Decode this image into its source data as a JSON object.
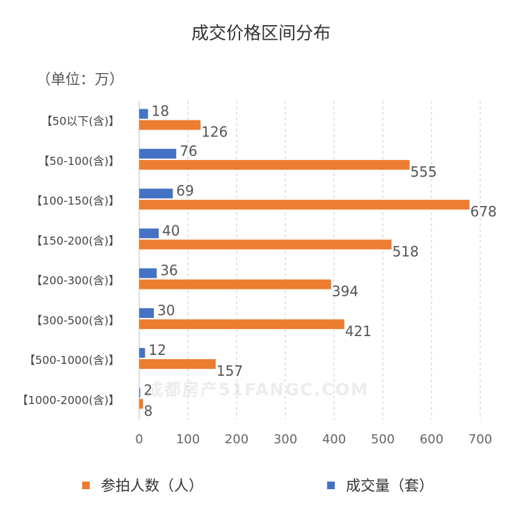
{
  "chart_data": {
    "type": "bar",
    "orientation": "horizontal",
    "title": "成交价格区间分布",
    "unit_label": "（单位：万）",
    "categories": [
      "【50以下(含)】",
      "【50-100(含)】",
      "【100-150(含)】",
      "【150-200(含)】",
      "【200-300(含)】",
      "【300-500(含)】",
      "【500-1000(含)】",
      "【1000-2000(含)】"
    ],
    "series": [
      {
        "name": "成交量（套）",
        "values": [
          18,
          76,
          69,
          40,
          36,
          30,
          12,
          2
        ],
        "color": "#4472C4"
      },
      {
        "name": "参拍人数（人）",
        "values": [
          126,
          555,
          678,
          518,
          394,
          421,
          157,
          8
        ],
        "color": "#ED7D31"
      }
    ],
    "xlim": [
      0,
      700
    ],
    "xticks": [
      0,
      100,
      200,
      300,
      400,
      500,
      600,
      700
    ],
    "grid": "vertical dashed",
    "legend_position": "bottom"
  },
  "legend": {
    "orange_label": "参拍人数（人）",
    "blue_label": "成交量（套）"
  },
  "watermark": "成都房产51FANGC.COM"
}
